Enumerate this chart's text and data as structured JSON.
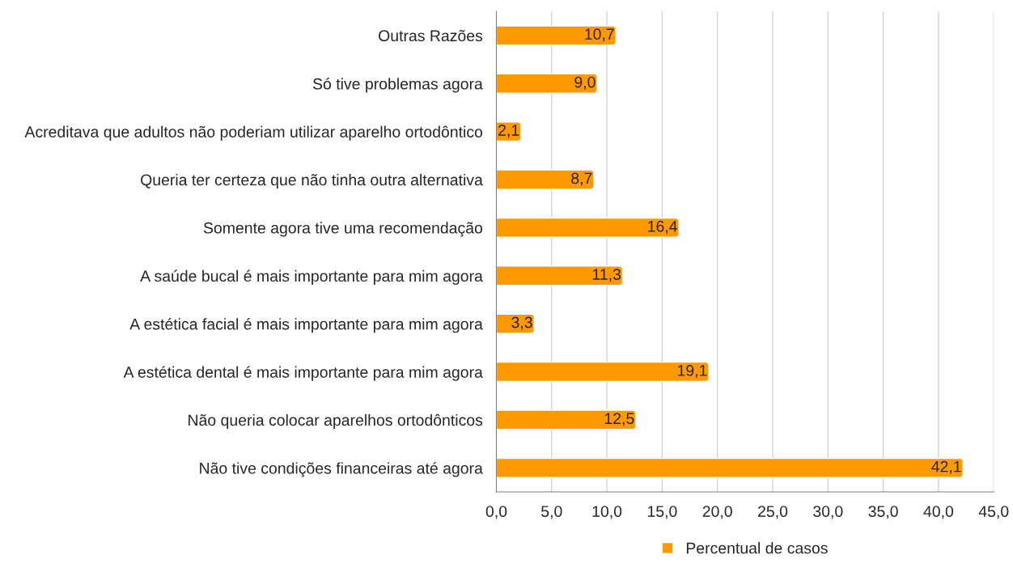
{
  "chart_data": {
    "type": "bar",
    "orientation": "horizontal",
    "categories": [
      "Outras Razões",
      "Só tive problemas agora",
      "Acreditava que adultos não poderiam utilizar aparelho ortodôntico",
      "Queria ter certeza que não tinha outra alternativa",
      "Somente agora tive uma recomendação",
      "A saúde bucal é mais importante para mim agora",
      "A estética facial é mais importante para mim agora",
      "A estética dental é mais importante para mim agora",
      "Não queria colocar aparelhos ortodônticos",
      "Não tive condições financeiras até agora"
    ],
    "series": [
      {
        "name": "Percentual de casos",
        "color": "#ff9900",
        "values": [
          10.7,
          9.0,
          2.1,
          8.7,
          16.4,
          11.3,
          3.3,
          19.1,
          12.5,
          42.1
        ],
        "value_labels": [
          "10,7",
          "9,0",
          "2,1",
          "8,7",
          "16,4",
          "11,3",
          "3,3",
          "19,1",
          "12,5",
          "42,1"
        ]
      }
    ],
    "xlim": [
      0,
      45
    ],
    "xticks": [
      {
        "value": 0,
        "label": "0,0"
      },
      {
        "value": 5,
        "label": "5,0"
      },
      {
        "value": 10,
        "label": "10,0"
      },
      {
        "value": 15,
        "label": "15,0"
      },
      {
        "value": 20,
        "label": "20,0"
      },
      {
        "value": 25,
        "label": "25,0"
      },
      {
        "value": 30,
        "label": "30,0"
      },
      {
        "value": 35,
        "label": "35,0"
      },
      {
        "value": 40,
        "label": "40,0"
      },
      {
        "value": 45,
        "label": "45,0"
      }
    ],
    "grid": "x",
    "legend": "bottom"
  }
}
